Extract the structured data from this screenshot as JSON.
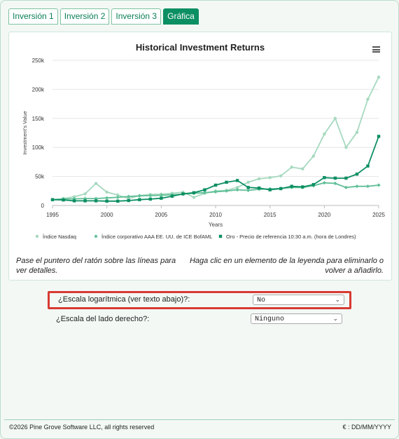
{
  "tabs": [
    {
      "label": "Inversión 1",
      "active": false
    },
    {
      "label": "Inversión 2",
      "active": false
    },
    {
      "label": "Inversión 3",
      "active": false
    },
    {
      "label": "Gráfica",
      "active": true
    }
  ],
  "notes": {
    "left": "Pase el puntero del ratón sobre las líneas para ver detalles.",
    "right": "Haga clic en un elemento de la leyenda para eliminarlo o volver a añadirlo."
  },
  "settings": {
    "log_scale": {
      "label": "¿Escala logarítmica (ver texto abajo)?:",
      "value": "No"
    },
    "right_scale": {
      "label": "¿Escala del lado derecho?:",
      "value": "Ninguno"
    }
  },
  "footer": {
    "copyright": "©2026 Pine Grove Software LLC, all rights reserved",
    "format": "€ : DD/MM/YYYY"
  },
  "icons": {
    "menu": "hamburger-menu-icon",
    "select_arrow": "chevron-down-icon"
  },
  "chart_data": {
    "type": "line",
    "title": "Historical Investment Returns",
    "xlabel": "Years",
    "ylabel": "Investment's Value",
    "xlim": [
      1995,
      2025
    ],
    "ylim": [
      0,
      250000
    ],
    "x_ticks": [
      1995,
      2000,
      2005,
      2010,
      2015,
      2020,
      2025
    ],
    "y_ticks": [
      0,
      50000,
      100000,
      150000,
      200000,
      250000
    ],
    "y_tick_labels": [
      "0",
      "50k",
      "100k",
      "150k",
      "200k",
      "250k"
    ],
    "grid": true,
    "legend_position": "bottom",
    "x": [
      1995,
      1996,
      1997,
      1998,
      1999,
      2000,
      2001,
      2002,
      2003,
      2004,
      2005,
      2006,
      2007,
      2008,
      2009,
      2010,
      2011,
      2012,
      2013,
      2014,
      2015,
      2016,
      2017,
      2018,
      2019,
      2020,
      2021,
      2022,
      2023,
      2024,
      2025
    ],
    "series": [
      {
        "name": "Índice Nasdaq",
        "color": "#a6d9bf",
        "marker": "circle",
        "values": [
          10000,
          12000,
          15000,
          20000,
          38000,
          23000,
          18000,
          12000,
          17000,
          19000,
          19500,
          21000,
          23000,
          14000,
          21000,
          25000,
          26000,
          31000,
          40000,
          46000,
          48000,
          51000,
          66000,
          63000,
          85000,
          123000,
          150000,
          100000,
          126000,
          183000,
          221000
        ]
      },
      {
        "name": "Índice corporativo AAA EE. UU. de ICE BofAML",
        "color": "#5fbf96",
        "marker": "diamond",
        "values": [
          10000,
          11000,
          11500,
          12000,
          12000,
          13000,
          14000,
          15500,
          16500,
          17000,
          17500,
          18500,
          19500,
          21000,
          22000,
          23500,
          25000,
          27000,
          26000,
          28000,
          28500,
          29500,
          31000,
          31000,
          34000,
          39000,
          38000,
          31000,
          33000,
          33000,
          35000
        ]
      },
      {
        "name": "Oro - Precio de referencia 10:30 a.m. (hora de Londres)",
        "color": "#0c8f62",
        "marker": "square",
        "values": [
          10000,
          9500,
          8000,
          8000,
          8000,
          7500,
          7500,
          8500,
          10000,
          11000,
          12500,
          16000,
          20000,
          22000,
          27000,
          35000,
          40000,
          43000,
          31000,
          30000,
          27000,
          29000,
          33000,
          32000,
          36000,
          48000,
          47000,
          47000,
          54000,
          68000,
          119000
        ]
      }
    ]
  }
}
